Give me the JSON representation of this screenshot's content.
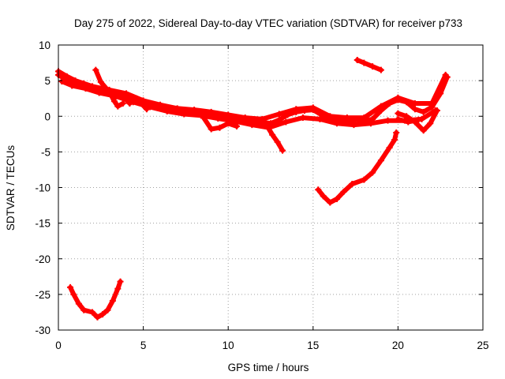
{
  "chart_data": {
    "type": "scatter",
    "title": "Day 275 of 2022, Sidereal Day-to-day VTEC variation (SDTVAR) for receiver p733",
    "xlabel": "GPS time / hours",
    "ylabel": "SDTVAR / TECUs",
    "xlim": [
      0,
      25
    ],
    "ylim": [
      -30,
      10
    ],
    "xticks": [
      0,
      5,
      10,
      15,
      20,
      25
    ],
    "yticks": [
      -30,
      -25,
      -20,
      -15,
      -10,
      -5,
      0,
      5,
      10
    ],
    "xtick_labels": [
      "0",
      "5",
      "10",
      "15",
      "20",
      "25"
    ],
    "ytick_labels": [
      "-30",
      "-25",
      "-20",
      "-15",
      "-10",
      "-5",
      "0",
      "5",
      "10"
    ],
    "grid": true,
    "series_color": "#ff0000",
    "series": [
      {
        "name": "main-band-a",
        "points": [
          [
            0.0,
            5.8
          ],
          [
            0.5,
            5.1
          ],
          [
            1.0,
            4.6
          ],
          [
            1.5,
            4.2
          ],
          [
            2.0,
            3.9
          ],
          [
            2.5,
            3.6
          ],
          [
            3.0,
            3.3
          ],
          [
            3.5,
            3.1
          ],
          [
            4.0,
            2.8
          ],
          [
            4.5,
            2.4
          ],
          [
            5.0,
            2.0
          ],
          [
            5.5,
            1.6
          ],
          [
            6.0,
            1.3
          ],
          [
            7.0,
            1.0
          ],
          [
            8.0,
            0.6
          ],
          [
            9.0,
            0.3
          ],
          [
            10.0,
            0.0
          ],
          [
            11.0,
            -0.5
          ],
          [
            12.0,
            -0.8
          ],
          [
            12.5,
            -1.0
          ],
          [
            13.0,
            -0.5
          ],
          [
            13.5,
            0.2
          ],
          [
            14.0,
            0.6
          ],
          [
            14.5,
            0.8
          ],
          [
            15.0,
            0.9
          ],
          [
            15.5,
            0.2
          ],
          [
            16.0,
            -0.6
          ],
          [
            16.5,
            -0.4
          ],
          [
            17.0,
            -0.6
          ],
          [
            17.5,
            -0.5
          ],
          [
            18.0,
            -0.6
          ],
          [
            18.5,
            -0.4
          ],
          [
            19.0,
            0.8
          ],
          [
            19.5,
            1.8
          ],
          [
            20.0,
            2.3
          ],
          [
            20.5,
            2.0
          ],
          [
            21.0,
            1.0
          ],
          [
            21.5,
            0.6
          ],
          [
            22.0,
            1.3
          ],
          [
            22.5,
            3.2
          ],
          [
            22.9,
            5.5
          ]
        ]
      },
      {
        "name": "main-band-b",
        "points": [
          [
            0.0,
            6.3
          ],
          [
            0.5,
            5.6
          ],
          [
            1.0,
            5.0
          ],
          [
            1.5,
            4.6
          ],
          [
            2.0,
            4.2
          ],
          [
            3.0,
            3.7
          ],
          [
            4.0,
            3.2
          ],
          [
            5.0,
            2.2
          ],
          [
            6.0,
            1.6
          ],
          [
            7.0,
            1.1
          ],
          [
            8.0,
            0.9
          ],
          [
            9.0,
            0.6
          ],
          [
            10.0,
            0.2
          ],
          [
            11.0,
            -0.2
          ],
          [
            12.0,
            -0.4
          ],
          [
            13.0,
            0.3
          ],
          [
            14.0,
            1.0
          ],
          [
            15.0,
            1.2
          ],
          [
            16.0,
            0.0
          ],
          [
            17.0,
            -0.2
          ],
          [
            18.0,
            -0.2
          ],
          [
            19.0,
            1.4
          ],
          [
            20.0,
            2.6
          ],
          [
            21.0,
            1.8
          ],
          [
            22.0,
            1.8
          ],
          [
            22.8,
            5.8
          ]
        ]
      },
      {
        "name": "main-band-c",
        "points": [
          [
            0.2,
            4.9
          ],
          [
            0.8,
            4.3
          ],
          [
            1.6,
            3.9
          ],
          [
            2.4,
            3.3
          ],
          [
            3.4,
            2.8
          ],
          [
            4.4,
            2.0
          ],
          [
            5.4,
            1.3
          ],
          [
            6.4,
            0.7
          ],
          [
            7.4,
            0.3
          ],
          [
            8.4,
            0.1
          ],
          [
            9.4,
            -0.3
          ],
          [
            10.4,
            -0.7
          ],
          [
            11.4,
            -1.2
          ],
          [
            12.4,
            -1.6
          ],
          [
            13.4,
            -0.8
          ],
          [
            14.4,
            -0.2
          ],
          [
            15.4,
            -0.4
          ],
          [
            16.4,
            -1.0
          ],
          [
            17.4,
            -1.2
          ],
          [
            18.4,
            -1.0
          ],
          [
            19.4,
            -0.6
          ],
          [
            20.4,
            -0.6
          ],
          [
            21.4,
            -0.4
          ],
          [
            22.2,
            0.8
          ]
        ]
      },
      {
        "name": "dip-1",
        "points": [
          [
            2.2,
            6.5
          ],
          [
            2.5,
            4.8
          ],
          [
            3.0,
            3.4
          ],
          [
            3.3,
            2.1
          ],
          [
            3.5,
            1.4
          ],
          [
            3.8,
            1.8
          ]
        ]
      },
      {
        "name": "dip-2",
        "points": [
          [
            3.8,
            2.8
          ],
          [
            4.2,
            1.8
          ],
          [
            4.6,
            2.5
          ],
          [
            5.2,
            1.0
          ]
        ]
      },
      {
        "name": "dip-3",
        "points": [
          [
            8.5,
            0.0
          ],
          [
            9.0,
            -1.8
          ],
          [
            9.5,
            -1.6
          ],
          [
            10.0,
            -1.0
          ],
          [
            10.5,
            -1.4
          ]
        ]
      },
      {
        "name": "dip-4",
        "points": [
          [
            12.3,
            -1.4
          ],
          [
            12.6,
            -2.6
          ],
          [
            12.9,
            -3.6
          ],
          [
            13.2,
            -4.8
          ]
        ]
      },
      {
        "name": "dip-5",
        "points": [
          [
            20.0,
            0.4
          ],
          [
            20.5,
            0.0
          ],
          [
            21.0,
            -0.8
          ],
          [
            21.5,
            -2.0
          ],
          [
            21.9,
            -1.0
          ],
          [
            22.3,
            0.8
          ]
        ]
      },
      {
        "name": "dip-6",
        "points": [
          [
            20.0,
            -0.4
          ],
          [
            20.6,
            -0.8
          ],
          [
            21.2,
            -0.5
          ]
        ]
      },
      {
        "name": "upper-segment",
        "points": [
          [
            17.6,
            7.9
          ],
          [
            18.0,
            7.5
          ],
          [
            18.5,
            7.0
          ],
          [
            19.0,
            6.5
          ]
        ]
      },
      {
        "name": "recovery-arc",
        "points": [
          [
            15.3,
            -10.3
          ],
          [
            15.6,
            -11.2
          ],
          [
            16.0,
            -12.1
          ],
          [
            16.4,
            -11.6
          ],
          [
            16.8,
            -10.6
          ],
          [
            17.3,
            -9.5
          ],
          [
            18.0,
            -8.9
          ],
          [
            18.5,
            -7.9
          ],
          [
            19.0,
            -6.2
          ],
          [
            19.5,
            -4.4
          ],
          [
            19.8,
            -3.3
          ],
          [
            19.9,
            -2.3
          ]
        ]
      },
      {
        "name": "early-trough",
        "points": [
          [
            0.7,
            -24.0
          ],
          [
            0.9,
            -25.0
          ],
          [
            1.2,
            -26.3
          ],
          [
            1.5,
            -27.2
          ],
          [
            2.0,
            -27.5
          ],
          [
            2.3,
            -28.2
          ],
          [
            2.6,
            -27.8
          ],
          [
            2.9,
            -27.2
          ],
          [
            3.2,
            -25.9
          ],
          [
            3.5,
            -24.2
          ],
          [
            3.65,
            -23.2
          ]
        ]
      }
    ]
  }
}
